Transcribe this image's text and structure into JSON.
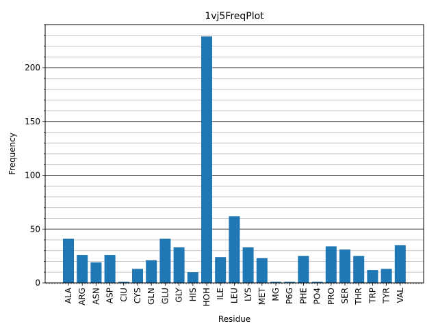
{
  "chart_data": {
    "type": "bar",
    "title": "1vj5FreqPlot",
    "xlabel": "Residue",
    "ylabel": "Frequency",
    "categories": [
      "ALA",
      "ARG",
      "ASN",
      "ASP",
      "CIU",
      "CYS",
      "GLN",
      "GLU",
      "GLY",
      "HIS",
      "HOH",
      "ILE",
      "LEU",
      "LYS",
      "MET",
      "MG",
      "P6G",
      "PHE",
      "PO4",
      "PRO",
      "SER",
      "THR",
      "TRP",
      "TYR",
      "VAL"
    ],
    "values": [
      41,
      26,
      19,
      26,
      1,
      13,
      21,
      41,
      33,
      10,
      229,
      24,
      62,
      33,
      23,
      1,
      1,
      25,
      1,
      34,
      31,
      25,
      12,
      13,
      35
    ],
    "ylim": [
      0,
      240
    ],
    "yticks": [
      0,
      50,
      100,
      150,
      200
    ],
    "grid": "y-major and minor",
    "legend": "none",
    "bar_color": "#1f77b4"
  }
}
